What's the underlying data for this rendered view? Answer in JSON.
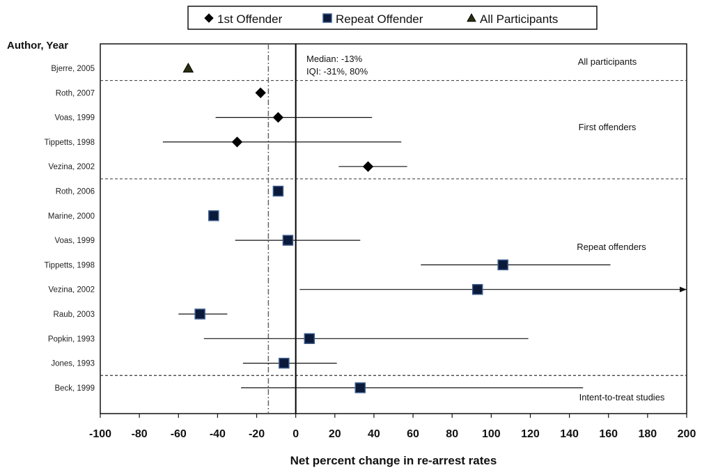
{
  "chart_data": {
    "type": "scatter",
    "subtype": "forest-plot",
    "title": "",
    "xlabel": "Net percent change in re-arrest rates",
    "ylabel": "Author, Year",
    "xlim": [
      -100,
      200
    ],
    "xticks": [
      "-100",
      "-80",
      "-60",
      "-40",
      "-20",
      "0",
      "20",
      "40",
      "60",
      "80",
      "100",
      "120",
      "140",
      "160",
      "180",
      "200"
    ],
    "legend": {
      "placement": "top-center",
      "entries": [
        {
          "name": "1st Offender",
          "marker": "diamond",
          "color": "#000000"
        },
        {
          "name": "Repeat Offender",
          "marker": "square",
          "color": "#0b1a3a"
        },
        {
          "name": "All Participants",
          "marker": "triangle",
          "color": "#2b2f12"
        }
      ]
    },
    "median_line": {
      "x": -14,
      "style": "dash-dot",
      "color": "#666666"
    },
    "annotations": {
      "median": "Median: -13%",
      "iqi": "IQI: -31%, 80%"
    },
    "sections": [
      {
        "label": "All participants",
        "after_row": 0
      },
      {
        "label": "First offenders",
        "after_row": 4
      },
      {
        "label": "Repeat offenders",
        "after_row": 12
      },
      {
        "label": "Intent-to-treat studies",
        "after_row": null
      }
    ],
    "studies": [
      {
        "label": "Bjerre, 2005",
        "group": "All Participants",
        "estimate": -55,
        "ci": null
      },
      {
        "label": "Roth, 2007",
        "group": "1st Offender",
        "estimate": -18,
        "ci": null
      },
      {
        "label": "Voas, 1999",
        "group": "1st Offender",
        "estimate": -9,
        "ci": [
          -41,
          39
        ]
      },
      {
        "label": "Tippetts, 1998",
        "group": "1st Offender",
        "estimate": -30,
        "ci": [
          -68,
          54
        ]
      },
      {
        "label": "Vezina, 2002",
        "group": "1st Offender",
        "estimate": 37,
        "ci": [
          22,
          57
        ]
      },
      {
        "label": "Roth, 2006",
        "group": "Repeat Offender",
        "estimate": -9,
        "ci": null
      },
      {
        "label": "Marine, 2000",
        "group": "Repeat Offender",
        "estimate": -42,
        "ci": null
      },
      {
        "label": "Voas, 1999",
        "group": "Repeat Offender",
        "estimate": -4,
        "ci": [
          -31,
          33
        ]
      },
      {
        "label": "Tippetts, 1998",
        "group": "Repeat Offender",
        "estimate": 106,
        "ci": [
          64,
          161
        ]
      },
      {
        "label": "Vezina, 2002",
        "group": "Repeat Offender",
        "estimate": 93,
        "ci": [
          2,
          200
        ],
        "ci_arrow": true
      },
      {
        "label": "Raub, 2003",
        "group": "Repeat Offender",
        "estimate": -49,
        "ci": [
          -60,
          -35
        ]
      },
      {
        "label": "Popkin, 1993",
        "group": "Repeat Offender",
        "estimate": 7,
        "ci": [
          -47,
          119
        ]
      },
      {
        "label": "Jones, 1993",
        "group": "Repeat Offender",
        "estimate": -6,
        "ci": [
          -27,
          21
        ]
      },
      {
        "label": "Beck, 1999",
        "group": "Repeat Offender",
        "estimate": 33,
        "ci": [
          -28,
          147
        ]
      }
    ]
  }
}
